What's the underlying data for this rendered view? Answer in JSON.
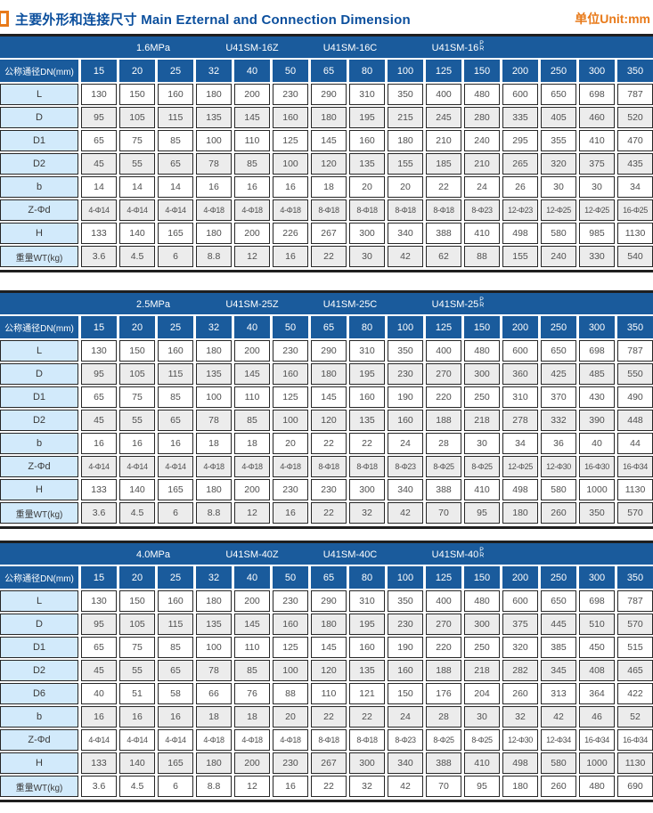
{
  "header": {
    "title_zh": "主要外形和连接尺寸",
    "title_en": "Main Ezternal and Connection Dimension",
    "unit_label": "单位Unit:mm"
  },
  "colors": {
    "band_blue": "#1a5b9c",
    "title_blue": "#0b4f9d",
    "accent_orange": "#e87a1a",
    "label_cell_blue": "#d2eafb",
    "alt_row_gray": "#ececec",
    "border_dark": "#262626"
  },
  "tables": [
    {
      "band": {
        "pressure": "1.6MPa",
        "model_z": "U41SM-16Z",
        "model_c": "U41SM-16C",
        "model_pr_base": "U41SM-16",
        "pr_top": "P",
        "pr_bottom": "R"
      },
      "header": {
        "label": "公称通径DN(mm)",
        "dn": [
          "15",
          "20",
          "25",
          "32",
          "40",
          "50",
          "65",
          "80",
          "100",
          "125",
          "150",
          "200",
          "250",
          "300",
          "350"
        ]
      },
      "rows": [
        {
          "label": "L",
          "values": [
            "130",
            "150",
            "160",
            "180",
            "200",
            "230",
            "290",
            "310",
            "350",
            "400",
            "480",
            "600",
            "650",
            "698",
            "787"
          ]
        },
        {
          "label": "D",
          "values": [
            "95",
            "105",
            "115",
            "135",
            "145",
            "160",
            "180",
            "195",
            "215",
            "245",
            "280",
            "335",
            "405",
            "460",
            "520"
          ]
        },
        {
          "label": "D1",
          "values": [
            "65",
            "75",
            "85",
            "100",
            "110",
            "125",
            "145",
            "160",
            "180",
            "210",
            "240",
            "295",
            "355",
            "410",
            "470"
          ]
        },
        {
          "label": "D2",
          "values": [
            "45",
            "55",
            "65",
            "78",
            "85",
            "100",
            "120",
            "135",
            "155",
            "185",
            "210",
            "265",
            "320",
            "375",
            "435"
          ]
        },
        {
          "label": "b",
          "values": [
            "14",
            "14",
            "14",
            "16",
            "16",
            "16",
            "18",
            "20",
            "20",
            "22",
            "24",
            "26",
            "30",
            "30",
            "34"
          ]
        },
        {
          "label": "Z-Φd",
          "values": [
            "4-Φ14",
            "4-Φ14",
            "4-Φ14",
            "4-Φ18",
            "4-Φ18",
            "4-Φ18",
            "8-Φ18",
            "8-Φ18",
            "8-Φ18",
            "8-Φ18",
            "8-Φ23",
            "12-Φ23",
            "12-Φ25",
            "12-Φ25",
            "16-Φ25"
          ]
        },
        {
          "label": "H",
          "values": [
            "133",
            "140",
            "165",
            "180",
            "200",
            "226",
            "267",
            "300",
            "340",
            "388",
            "410",
            "498",
            "580",
            "985",
            "1130"
          ]
        },
        {
          "label": "重量WT(kg)",
          "values": [
            "3.6",
            "4.5",
            "6",
            "8.8",
            "12",
            "16",
            "22",
            "30",
            "42",
            "62",
            "88",
            "155",
            "240",
            "330",
            "540"
          ]
        }
      ]
    },
    {
      "band": {
        "pressure": "2.5MPa",
        "model_z": "U41SM-25Z",
        "model_c": "U41SM-25C",
        "model_pr_base": "U41SM-25",
        "pr_top": "P",
        "pr_bottom": "R"
      },
      "header": {
        "label": "公称通径DN(mm)",
        "dn": [
          "15",
          "20",
          "25",
          "32",
          "40",
          "50",
          "65",
          "80",
          "100",
          "125",
          "150",
          "200",
          "250",
          "300",
          "350"
        ]
      },
      "rows": [
        {
          "label": "L",
          "values": [
            "130",
            "150",
            "160",
            "180",
            "200",
            "230",
            "290",
            "310",
            "350",
            "400",
            "480",
            "600",
            "650",
            "698",
            "787"
          ]
        },
        {
          "label": "D",
          "values": [
            "95",
            "105",
            "115",
            "135",
            "145",
            "160",
            "180",
            "195",
            "230",
            "270",
            "300",
            "360",
            "425",
            "485",
            "550"
          ]
        },
        {
          "label": "D1",
          "values": [
            "65",
            "75",
            "85",
            "100",
            "110",
            "125",
            "145",
            "160",
            "190",
            "220",
            "250",
            "310",
            "370",
            "430",
            "490"
          ]
        },
        {
          "label": "D2",
          "values": [
            "45",
            "55",
            "65",
            "78",
            "85",
            "100",
            "120",
            "135",
            "160",
            "188",
            "218",
            "278",
            "332",
            "390",
            "448"
          ]
        },
        {
          "label": "b",
          "values": [
            "16",
            "16",
            "16",
            "18",
            "18",
            "20",
            "22",
            "22",
            "24",
            "28",
            "30",
            "34",
            "36",
            "40",
            "44"
          ]
        },
        {
          "label": "Z-Φd",
          "values": [
            "4-Φ14",
            "4-Φ14",
            "4-Φ14",
            "4-Φ18",
            "4-Φ18",
            "4-Φ18",
            "8-Φ18",
            "8-Φ18",
            "8-Φ23",
            "8-Φ25",
            "8-Φ25",
            "12-Φ25",
            "12-Φ30",
            "16-Φ30",
            "16-Φ34"
          ]
        },
        {
          "label": "H",
          "values": [
            "133",
            "140",
            "165",
            "180",
            "200",
            "230",
            "230",
            "300",
            "340",
            "388",
            "410",
            "498",
            "580",
            "1000",
            "1130"
          ]
        },
        {
          "label": "重量WT(kg)",
          "values": [
            "3.6",
            "4.5",
            "6",
            "8.8",
            "12",
            "16",
            "22",
            "32",
            "42",
            "70",
            "95",
            "180",
            "260",
            "350",
            "570"
          ]
        }
      ]
    },
    {
      "band": {
        "pressure": "4.0MPa",
        "model_z": "U41SM-40Z",
        "model_c": "U41SM-40C",
        "model_pr_base": "U41SM-40",
        "pr_top": "P",
        "pr_bottom": "R"
      },
      "header": {
        "label": "公称通径DN(mm)",
        "dn": [
          "15",
          "20",
          "25",
          "32",
          "40",
          "50",
          "65",
          "80",
          "100",
          "125",
          "150",
          "200",
          "250",
          "300",
          "350"
        ]
      },
      "rows": [
        {
          "label": "L",
          "values": [
            "130",
            "150",
            "160",
            "180",
            "200",
            "230",
            "290",
            "310",
            "350",
            "400",
            "480",
            "600",
            "650",
            "698",
            "787"
          ]
        },
        {
          "label": "D",
          "values": [
            "95",
            "105",
            "115",
            "135",
            "145",
            "160",
            "180",
            "195",
            "230",
            "270",
            "300",
            "375",
            "445",
            "510",
            "570"
          ]
        },
        {
          "label": "D1",
          "values": [
            "65",
            "75",
            "85",
            "100",
            "110",
            "125",
            "145",
            "160",
            "190",
            "220",
            "250",
            "320",
            "385",
            "450",
            "515"
          ]
        },
        {
          "label": "D2",
          "values": [
            "45",
            "55",
            "65",
            "78",
            "85",
            "100",
            "120",
            "135",
            "160",
            "188",
            "218",
            "282",
            "345",
            "408",
            "465"
          ]
        },
        {
          "label": "D6",
          "values": [
            "40",
            "51",
            "58",
            "66",
            "76",
            "88",
            "110",
            "121",
            "150",
            "176",
            "204",
            "260",
            "313",
            "364",
            "422"
          ]
        },
        {
          "label": "b",
          "values": [
            "16",
            "16",
            "16",
            "18",
            "18",
            "20",
            "22",
            "22",
            "24",
            "28",
            "30",
            "32",
            "42",
            "46",
            "52"
          ]
        },
        {
          "label": "Z-Φd",
          "values": [
            "4-Φ14",
            "4-Φ14",
            "4-Φ14",
            "4-Φ18",
            "4-Φ18",
            "4-Φ18",
            "8-Φ18",
            "8-Φ18",
            "8-Φ23",
            "8-Φ25",
            "8-Φ25",
            "12-Φ30",
            "12-Φ34",
            "16-Φ34",
            "16-Φ34"
          ]
        },
        {
          "label": "H",
          "values": [
            "133",
            "140",
            "165",
            "180",
            "200",
            "230",
            "267",
            "300",
            "340",
            "388",
            "410",
            "498",
            "580",
            "1000",
            "1130"
          ]
        },
        {
          "label": "重量WT(kg)",
          "values": [
            "3.6",
            "4.5",
            "6",
            "8.8",
            "12",
            "16",
            "22",
            "32",
            "42",
            "70",
            "95",
            "180",
            "260",
            "480",
            "690"
          ]
        }
      ]
    }
  ]
}
